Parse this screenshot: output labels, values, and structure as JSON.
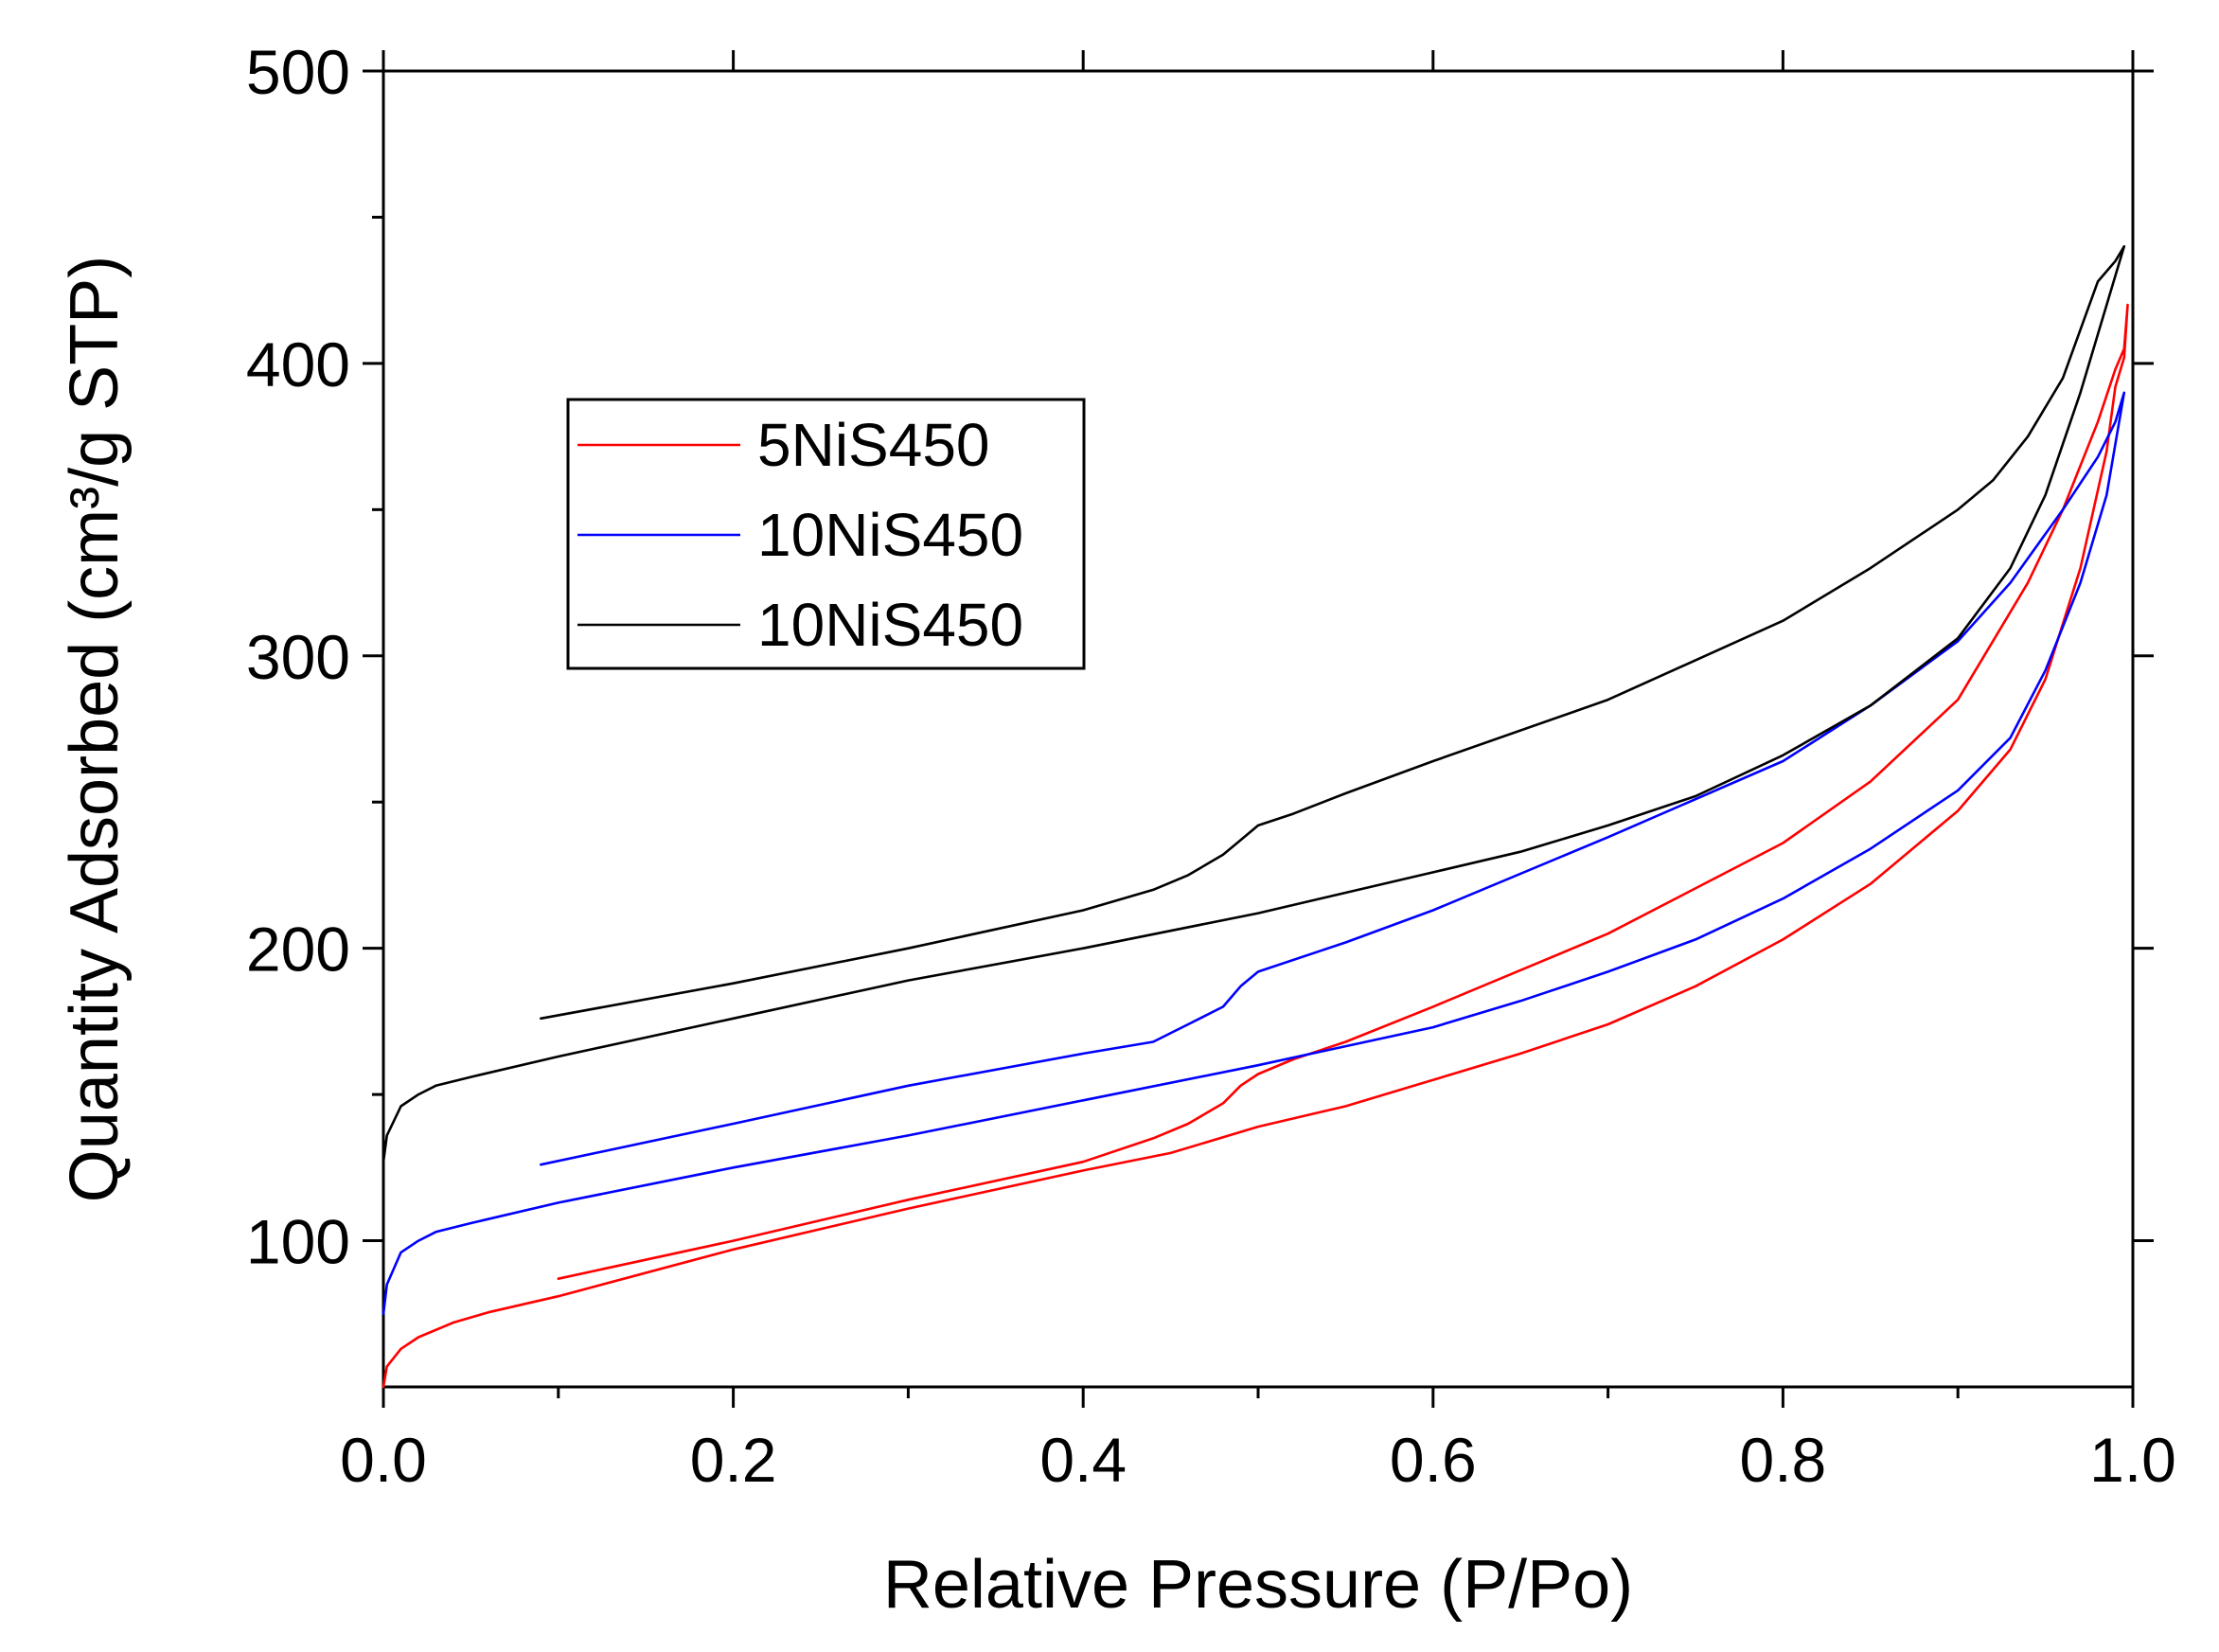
{
  "chart_data": {
    "type": "line",
    "title": "",
    "xlabel": "Relative Pressure (P/Po)",
    "ylabel": "Quantity Adsorbed (cm³/g STP)",
    "xlim": [
      0.0,
      1.0
    ],
    "ylim": [
      50,
      500
    ],
    "x_ticks": [
      "0.0",
      "0.2",
      "0.4",
      "0.6",
      "0.8",
      "1.0"
    ],
    "y_ticks": [
      "100",
      "200",
      "300",
      "400",
      "500"
    ],
    "grid": false,
    "legend_position": "upper-left",
    "series": [
      {
        "name": "5NiS450",
        "color": "#ff0000",
        "points": [
          [
            0.0,
            50
          ],
          [
            0.002,
            57
          ],
          [
            0.01,
            63
          ],
          [
            0.02,
            67
          ],
          [
            0.04,
            72
          ],
          [
            0.06,
            75.5
          ],
          [
            0.1,
            81
          ],
          [
            0.2,
            97
          ],
          [
            0.3,
            111
          ],
          [
            0.4,
            124
          ],
          [
            0.45,
            130
          ],
          [
            0.5,
            139
          ],
          [
            0.55,
            146
          ],
          [
            0.6,
            155
          ],
          [
            0.65,
            164
          ],
          [
            0.7,
            174
          ],
          [
            0.75,
            187
          ],
          [
            0.8,
            203
          ],
          [
            0.85,
            222
          ],
          [
            0.9,
            247
          ],
          [
            0.93,
            268
          ],
          [
            0.95,
            292
          ],
          [
            0.97,
            330
          ],
          [
            0.985,
            370
          ],
          [
            0.99,
            392
          ],
          [
            0.995,
            402
          ],
          [
            0.997,
            420
          ],
          [
            0.995,
            405
          ],
          [
            0.99,
            398
          ],
          [
            0.98,
            380
          ],
          [
            0.96,
            350
          ],
          [
            0.94,
            325
          ],
          [
            0.9,
            285
          ],
          [
            0.85,
            257
          ],
          [
            0.8,
            236
          ],
          [
            0.7,
            205
          ],
          [
            0.6,
            180
          ],
          [
            0.55,
            168
          ],
          [
            0.52,
            162
          ],
          [
            0.5,
            157
          ],
          [
            0.49,
            153
          ],
          [
            0.48,
            147
          ],
          [
            0.46,
            140
          ],
          [
            0.44,
            135
          ],
          [
            0.4,
            127
          ],
          [
            0.3,
            114
          ],
          [
            0.2,
            100
          ],
          [
            0.1,
            87
          ]
        ]
      },
      {
        "name": "10NiS450",
        "color": "#0000ff",
        "points": [
          [
            0.0,
            75
          ],
          [
            0.002,
            85
          ],
          [
            0.01,
            96
          ],
          [
            0.02,
            100
          ],
          [
            0.03,
            103
          ],
          [
            0.05,
            106
          ],
          [
            0.1,
            113
          ],
          [
            0.2,
            125
          ],
          [
            0.3,
            136
          ],
          [
            0.4,
            148
          ],
          [
            0.5,
            160
          ],
          [
            0.6,
            173
          ],
          [
            0.65,
            182
          ],
          [
            0.7,
            192
          ],
          [
            0.75,
            203
          ],
          [
            0.8,
            217
          ],
          [
            0.85,
            234
          ],
          [
            0.9,
            254
          ],
          [
            0.93,
            272
          ],
          [
            0.95,
            295
          ],
          [
            0.97,
            325
          ],
          [
            0.985,
            355
          ],
          [
            0.995,
            390
          ],
          [
            0.99,
            380
          ],
          [
            0.98,
            368
          ],
          [
            0.96,
            350
          ],
          [
            0.93,
            325
          ],
          [
            0.9,
            305
          ],
          [
            0.85,
            283
          ],
          [
            0.8,
            264
          ],
          [
            0.7,
            238
          ],
          [
            0.6,
            213
          ],
          [
            0.55,
            202
          ],
          [
            0.52,
            196
          ],
          [
            0.5,
            192
          ],
          [
            0.49,
            187
          ],
          [
            0.48,
            180
          ],
          [
            0.46,
            174
          ],
          [
            0.44,
            168
          ],
          [
            0.4,
            164
          ],
          [
            0.3,
            153
          ],
          [
            0.2,
            140
          ],
          [
            0.09,
            126
          ]
        ]
      },
      {
        "name": "10NiS450",
        "color": "#000000",
        "points": [
          [
            0.0,
            127
          ],
          [
            0.002,
            136
          ],
          [
            0.01,
            146
          ],
          [
            0.02,
            150
          ],
          [
            0.03,
            153
          ],
          [
            0.05,
            156
          ],
          [
            0.1,
            163
          ],
          [
            0.2,
            176
          ],
          [
            0.3,
            189
          ],
          [
            0.4,
            200
          ],
          [
            0.5,
            212
          ],
          [
            0.6,
            226
          ],
          [
            0.65,
            233
          ],
          [
            0.7,
            242
          ],
          [
            0.75,
            252
          ],
          [
            0.8,
            266
          ],
          [
            0.85,
            283
          ],
          [
            0.9,
            306
          ],
          [
            0.93,
            330
          ],
          [
            0.95,
            355
          ],
          [
            0.97,
            390
          ],
          [
            0.985,
            420
          ],
          [
            0.995,
            440
          ],
          [
            0.99,
            435
          ],
          [
            0.98,
            428
          ],
          [
            0.96,
            395
          ],
          [
            0.94,
            375
          ],
          [
            0.92,
            360
          ],
          [
            0.9,
            350
          ],
          [
            0.85,
            330
          ],
          [
            0.8,
            312
          ],
          [
            0.7,
            285
          ],
          [
            0.6,
            264
          ],
          [
            0.55,
            253
          ],
          [
            0.52,
            246
          ],
          [
            0.5,
            242
          ],
          [
            0.49,
            237
          ],
          [
            0.48,
            232
          ],
          [
            0.46,
            225
          ],
          [
            0.44,
            220
          ],
          [
            0.4,
            213
          ],
          [
            0.3,
            200
          ],
          [
            0.2,
            188
          ],
          [
            0.09,
            176
          ]
        ]
      }
    ]
  }
}
